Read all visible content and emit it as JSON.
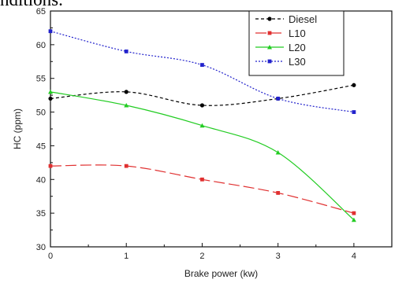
{
  "caption_fragment": "nditions.",
  "chart_data": {
    "type": "line",
    "title": "",
    "xlabel": "Brake power (kw)",
    "ylabel": "HC (ppm)",
    "xlim": [
      0,
      4.5
    ],
    "ylim": [
      30,
      65
    ],
    "xticks": [
      0,
      1,
      2,
      3,
      4
    ],
    "yticks": [
      30,
      35,
      40,
      45,
      50,
      55,
      60,
      65
    ],
    "legend_position": "top-right",
    "grid": false,
    "series": [
      {
        "name": "Diesel",
        "color": "#000000",
        "x": [
          0,
          1,
          2,
          3,
          4
        ],
        "y": [
          52,
          53,
          51,
          52,
          54
        ]
      },
      {
        "name": "L10",
        "color": "#e03030",
        "x": [
          0,
          1,
          2,
          3,
          4
        ],
        "y": [
          42,
          42,
          40,
          38,
          35
        ]
      },
      {
        "name": "L20",
        "color": "#22cc22",
        "x": [
          0,
          1,
          2,
          3,
          4
        ],
        "y": [
          53,
          51,
          48,
          44,
          34
        ]
      },
      {
        "name": "L30",
        "color": "#2222cc",
        "x": [
          0,
          1,
          2,
          3,
          4
        ],
        "y": [
          62,
          59,
          57,
          52,
          50
        ]
      }
    ]
  }
}
